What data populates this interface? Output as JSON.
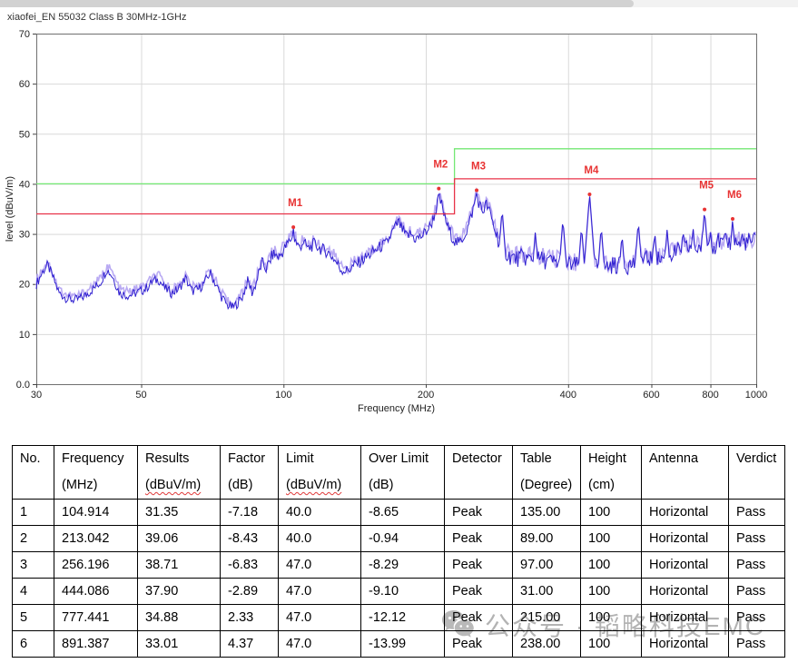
{
  "page_title": "xiaofei_EN 55032 Class B 30MHz-1GHz",
  "chart_data": {
    "type": "line",
    "title": "xiaofei_EN 55032 Class B 30MHz-1GHz",
    "xlabel": "Frequency (MHz)",
    "ylabel": "level (dBuV/m)",
    "x_scale": "log",
    "xlim": [
      30,
      1000
    ],
    "ylim": [
      0,
      70
    ],
    "grid": true,
    "x_ticks": [
      30,
      50,
      100,
      200,
      400,
      600,
      800,
      1000
    ],
    "y_ticks": [
      {
        "label": "70",
        "value": 70
      },
      {
        "label": "60",
        "value": 60
      },
      {
        "label": "50",
        "value": 50
      },
      {
        "label": "40",
        "value": 40
      },
      {
        "label": "30",
        "value": 30
      },
      {
        "label": "20",
        "value": 20
      },
      {
        "label": "10",
        "value": 10
      },
      {
        "label": "0.0",
        "value": 0
      }
    ],
    "limit_lines": [
      {
        "name": "EN 55032 Class B limit",
        "color": "#74e874",
        "points": [
          [
            30,
            40
          ],
          [
            230,
            40
          ],
          [
            230,
            47
          ],
          [
            1000,
            47
          ]
        ]
      },
      {
        "name": "margin line (limit - 6 dB)",
        "color": "#e83348",
        "points": [
          [
            30,
            34
          ],
          [
            230,
            34
          ],
          [
            230,
            41
          ],
          [
            1000,
            41
          ]
        ]
      }
    ],
    "trace": {
      "name": "measured emission (Peak)",
      "color": "#2f1fd0",
      "halo_color": "#b9aaf3",
      "anchors": [
        [
          30,
          20
        ],
        [
          31,
          22.6
        ],
        [
          31.7,
          23.8
        ],
        [
          32.5,
          21.5
        ],
        [
          33.5,
          18.2
        ],
        [
          35,
          17
        ],
        [
          36.5,
          16.8
        ],
        [
          38,
          17.6
        ],
        [
          39.5,
          19
        ],
        [
          41,
          20.3
        ],
        [
          42.3,
          23
        ],
        [
          43.5,
          21.5
        ],
        [
          45,
          18.2
        ],
        [
          47,
          17.7
        ],
        [
          49,
          18.3
        ],
        [
          51,
          19
        ],
        [
          53,
          20.6
        ],
        [
          54.5,
          20.9
        ],
        [
          56,
          19.2
        ],
        [
          58,
          18.2
        ],
        [
          60,
          19
        ],
        [
          62,
          21.2
        ],
        [
          64,
          18.6
        ],
        [
          66,
          18.9
        ],
        [
          68,
          20.2
        ],
        [
          70,
          22.3
        ],
        [
          72,
          19.8
        ],
        [
          74,
          17.4
        ],
        [
          76,
          15.8
        ],
        [
          78,
          15.3
        ],
        [
          80,
          16.2
        ],
        [
          82,
          17.6
        ],
        [
          84,
          20.6
        ],
        [
          86,
          18.2
        ],
        [
          88,
          21
        ],
        [
          90,
          24.3
        ],
        [
          92,
          23
        ],
        [
          95,
          26
        ],
        [
          98,
          25.4
        ],
        [
          101,
          27.4
        ],
        [
          104,
          29.2
        ],
        [
          106,
          28.6
        ],
        [
          108,
          27.2
        ],
        [
          110,
          28.4
        ],
        [
          113,
          27
        ],
        [
          116,
          28
        ],
        [
          120,
          27
        ],
        [
          124,
          26.4
        ],
        [
          128,
          25
        ],
        [
          132,
          23
        ],
        [
          136,
          22.6
        ],
        [
          140,
          23.4
        ],
        [
          145,
          24.4
        ],
        [
          150,
          25.4
        ],
        [
          155,
          26.4
        ],
        [
          160,
          27.4
        ],
        [
          165,
          28
        ],
        [
          170,
          30.4
        ],
        [
          175,
          32.4
        ],
        [
          178,
          31
        ],
        [
          182,
          29.4
        ],
        [
          186,
          30
        ],
        [
          190,
          29
        ],
        [
          195,
          29.4
        ],
        [
          200,
          30.4
        ],
        [
          205,
          31.8
        ],
        [
          210,
          34.6
        ],
        [
          213,
          37.2
        ],
        [
          216,
          35.8
        ],
        [
          220,
          32.8
        ],
        [
          225,
          30.4
        ],
        [
          230,
          28.6
        ],
        [
          235,
          28
        ],
        [
          240,
          29.4
        ],
        [
          245,
          31
        ],
        [
          250,
          33.8
        ],
        [
          256,
          37.6
        ],
        [
          260,
          35.8
        ],
        [
          264,
          34.4
        ],
        [
          268,
          36
        ],
        [
          272,
          34.8
        ],
        [
          276,
          32.8
        ],
        [
          280,
          30.8
        ],
        [
          285,
          28.8
        ],
        [
          290,
          27.4
        ],
        [
          295,
          26.4
        ],
        [
          300,
          25.6
        ],
        [
          310,
          25
        ],
        [
          320,
          25.4
        ],
        [
          330,
          25
        ],
        [
          340,
          24.6
        ],
        [
          350,
          25
        ],
        [
          360,
          24.6
        ],
        [
          380,
          24.2
        ],
        [
          400,
          24
        ],
        [
          420,
          23.6
        ],
        [
          444,
          23.8
        ],
        [
          460,
          23.5
        ],
        [
          480,
          23.5
        ],
        [
          500,
          23.8
        ],
        [
          520,
          23.5
        ],
        [
          540,
          23.8
        ],
        [
          560,
          24.4
        ],
        [
          580,
          24.8
        ],
        [
          600,
          25.2
        ],
        [
          620,
          24.9
        ],
        [
          640,
          25.4
        ],
        [
          660,
          25.9
        ],
        [
          680,
          26.4
        ],
        [
          700,
          26.9
        ],
        [
          720,
          27.3
        ],
        [
          740,
          26.9
        ],
        [
          760,
          27.4
        ],
        [
          780,
          27.8
        ],
        [
          800,
          27.9
        ],
        [
          820,
          27.5
        ],
        [
          840,
          27.9
        ],
        [
          860,
          28.3
        ],
        [
          880,
          28.3
        ],
        [
          900,
          28.4
        ],
        [
          920,
          28
        ],
        [
          940,
          28.4
        ],
        [
          960,
          28.3
        ],
        [
          980,
          28.4
        ],
        [
          1000,
          28.9
        ]
      ],
      "spikes": [
        [
          290,
          35
        ],
        [
          341,
          30.5
        ],
        [
          390,
          33
        ],
        [
          427,
          31.5
        ],
        [
          470,
          31.5
        ],
        [
          520,
          30
        ],
        [
          563,
          32.5
        ],
        [
          610,
          30.5
        ],
        [
          648,
          31
        ],
        [
          700,
          31
        ],
        [
          735,
          31.5
        ],
        [
          800,
          31
        ],
        [
          830,
          31
        ],
        [
          860,
          31
        ],
        [
          935,
          30.5
        ],
        [
          965,
          30.5
        ]
      ]
    },
    "markers": [
      {
        "id": "M1",
        "freq": 104.914,
        "level": 31.35
      },
      {
        "id": "M2",
        "freq": 213.042,
        "level": 39.06
      },
      {
        "id": "M3",
        "freq": 256.196,
        "level": 38.71
      },
      {
        "id": "M4",
        "freq": 444.086,
        "level": 37.9
      },
      {
        "id": "M5",
        "freq": 777.441,
        "level": 34.88
      },
      {
        "id": "M6",
        "freq": 891.387,
        "level": 33.01
      }
    ],
    "marker_color": "#e83333"
  },
  "table": {
    "headers": [
      {
        "label": "No.",
        "unit": ""
      },
      {
        "label": "Frequency",
        "unit": "(MHz)"
      },
      {
        "label": "Results",
        "unit": "(dBuV/m)",
        "wavy": true
      },
      {
        "label": "Factor",
        "unit": "(dB)"
      },
      {
        "label": "Limit",
        "unit": "(dBuV/m)",
        "wavy": true
      },
      {
        "label": "Over Limit",
        "unit": "(dB)"
      },
      {
        "label": "Detector",
        "unit": ""
      },
      {
        "label": "Table",
        "unit": "(Degree)"
      },
      {
        "label": "Height",
        "unit": "(cm)"
      },
      {
        "label": "Antenna",
        "unit": ""
      },
      {
        "label": "Verdict",
        "unit": ""
      }
    ],
    "rows": [
      [
        "1",
        "104.914",
        "31.35",
        "-7.18",
        "40.0",
        "-8.65",
        "Peak",
        "135.00",
        "100",
        "Horizontal",
        "Pass"
      ],
      [
        "2",
        "213.042",
        "39.06",
        "-8.43",
        "40.0",
        "-0.94",
        "Peak",
        "89.00",
        "100",
        "Horizontal",
        "Pass"
      ],
      [
        "3",
        "256.196",
        "38.71",
        "-6.83",
        "47.0",
        "-8.29",
        "Peak",
        "97.00",
        "100",
        "Horizontal",
        "Pass"
      ],
      [
        "4",
        "444.086",
        "37.90",
        "-2.89",
        "47.0",
        "-9.10",
        "Peak",
        "31.00",
        "100",
        "Horizontal",
        "Pass"
      ],
      [
        "5",
        "777.441",
        "34.88",
        "2.33",
        "47.0",
        "-12.12",
        "Peak",
        "215.00",
        "100",
        "Horizontal",
        "Pass"
      ],
      [
        "6",
        "891.387",
        "33.01",
        "4.37",
        "47.0",
        "-13.99",
        "Peak",
        "238.00",
        "100",
        "Horizontal",
        "Pass"
      ]
    ]
  },
  "watermark": {
    "text": "公众号 · 韬略科技EMC"
  }
}
